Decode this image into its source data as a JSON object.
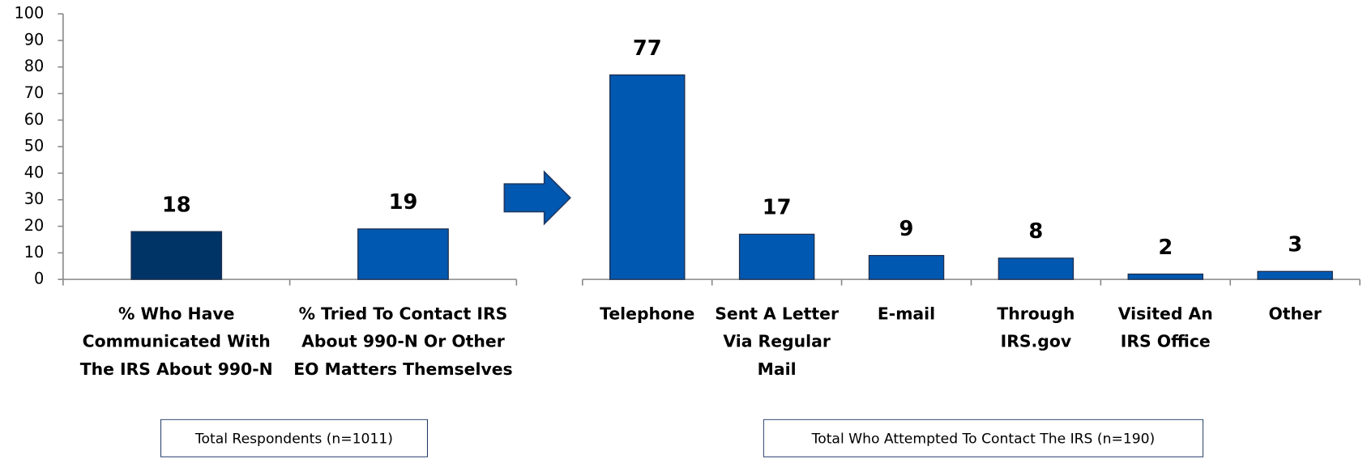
{
  "chart_data": [
    {
      "type": "bar",
      "categories": [
        "% Who Have Communicated With The IRS About 990-N",
        "% Tried To Contact IRS About 990-N Or Other EO Matters Themselves"
      ],
      "values": [
        18,
        19
      ],
      "colors": [
        "#003366",
        "#0058b0"
      ],
      "ylim": [
        0,
        100
      ],
      "yticks": [
        0,
        10,
        20,
        30,
        40,
        50,
        60,
        70,
        80,
        90,
        100
      ],
      "note": "Total Respondents (n=1011)"
    },
    {
      "type": "bar",
      "categories": [
        "Telephone",
        "Sent A Letter Via Regular Mail",
        "E-mail",
        "Through IRS.gov",
        "Visited An IRS Office",
        "Other"
      ],
      "values": [
        77,
        17,
        9,
        8,
        2,
        3
      ],
      "color": "#0058b0",
      "note": "Total Who Attempted To Contact The IRS (n=190)"
    }
  ]
}
